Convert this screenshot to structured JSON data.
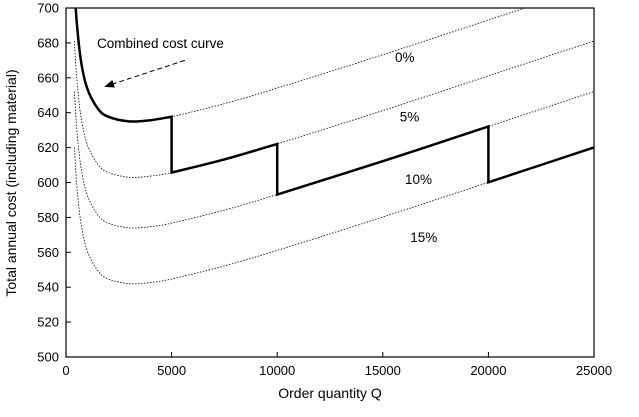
{
  "chart_data": {
    "type": "line",
    "title": "",
    "xlabel": "Order quantity Q",
    "ylabel": "Total annual cost (including material)",
    "xlim": [
      0,
      25000
    ],
    "ylim": [
      500,
      700
    ],
    "xticks": [
      0,
      5000,
      10000,
      15000,
      20000,
      25000
    ],
    "yticks": [
      500,
      520,
      540,
      560,
      580,
      600,
      620,
      640,
      660,
      680,
      700
    ],
    "grid": false,
    "x": [
      400,
      500,
      700,
      1000,
      1500,
      2000,
      3000,
      4000,
      5000,
      7500,
      10000,
      15000,
      20000,
      25000
    ],
    "series": [
      {
        "name": "0%",
        "style": "dotted",
        "values": [
          713.1,
          693.1,
          670.4,
          654.1,
          642.5,
          637.7,
          635.0,
          635.7,
          637.7,
          645.2,
          654.1,
          673.2,
          693.1,
          713.1
        ]
      },
      {
        "name": "5%",
        "style": "dotted",
        "values": [
          681.1,
          661.1,
          638.4,
          622.1,
          610.5,
          605.7,
          603.0,
          603.7,
          605.7,
          613.2,
          622.1,
          641.2,
          661.1,
          681.1
        ]
      },
      {
        "name": "10%",
        "style": "dotted",
        "values": [
          652.1,
          632.1,
          609.4,
          593.1,
          581.5,
          576.7,
          574.0,
          574.7,
          576.7,
          584.2,
          593.1,
          612.2,
          632.1,
          652.1
        ]
      },
      {
        "name": "15%",
        "style": "dotted",
        "values": [
          620.1,
          600.1,
          577.4,
          561.1,
          549.5,
          544.7,
          542.0,
          542.7,
          544.7,
          552.2,
          561.1,
          580.2,
          600.1,
          620.1
        ]
      }
    ],
    "combined": {
      "name": "Combined cost curve",
      "segments": [
        {
          "series": 0,
          "from": 400,
          "to": 5000
        },
        {
          "series": 1,
          "from": 5000,
          "to": 10000
        },
        {
          "series": 2,
          "from": 10000,
          "to": 20000
        },
        {
          "series": 3,
          "from": 20000,
          "to": 25000
        }
      ]
    },
    "annotations": [
      {
        "text": "Combined cost curve",
        "x": 1470,
        "y": 677,
        "arrow_from": [
          5630,
          670
        ],
        "arrow_to": [
          1850,
          655
        ]
      },
      {
        "text": "0%",
        "x": 15580,
        "y": 669
      },
      {
        "text": "5%",
        "x": 15800,
        "y": 635
      },
      {
        "text": "10%",
        "x": 16050,
        "y": 599
      },
      {
        "text": "15%",
        "x": 16300,
        "y": 566
      }
    ],
    "colors": {
      "line": "#000000",
      "background": "#ffffff"
    }
  }
}
